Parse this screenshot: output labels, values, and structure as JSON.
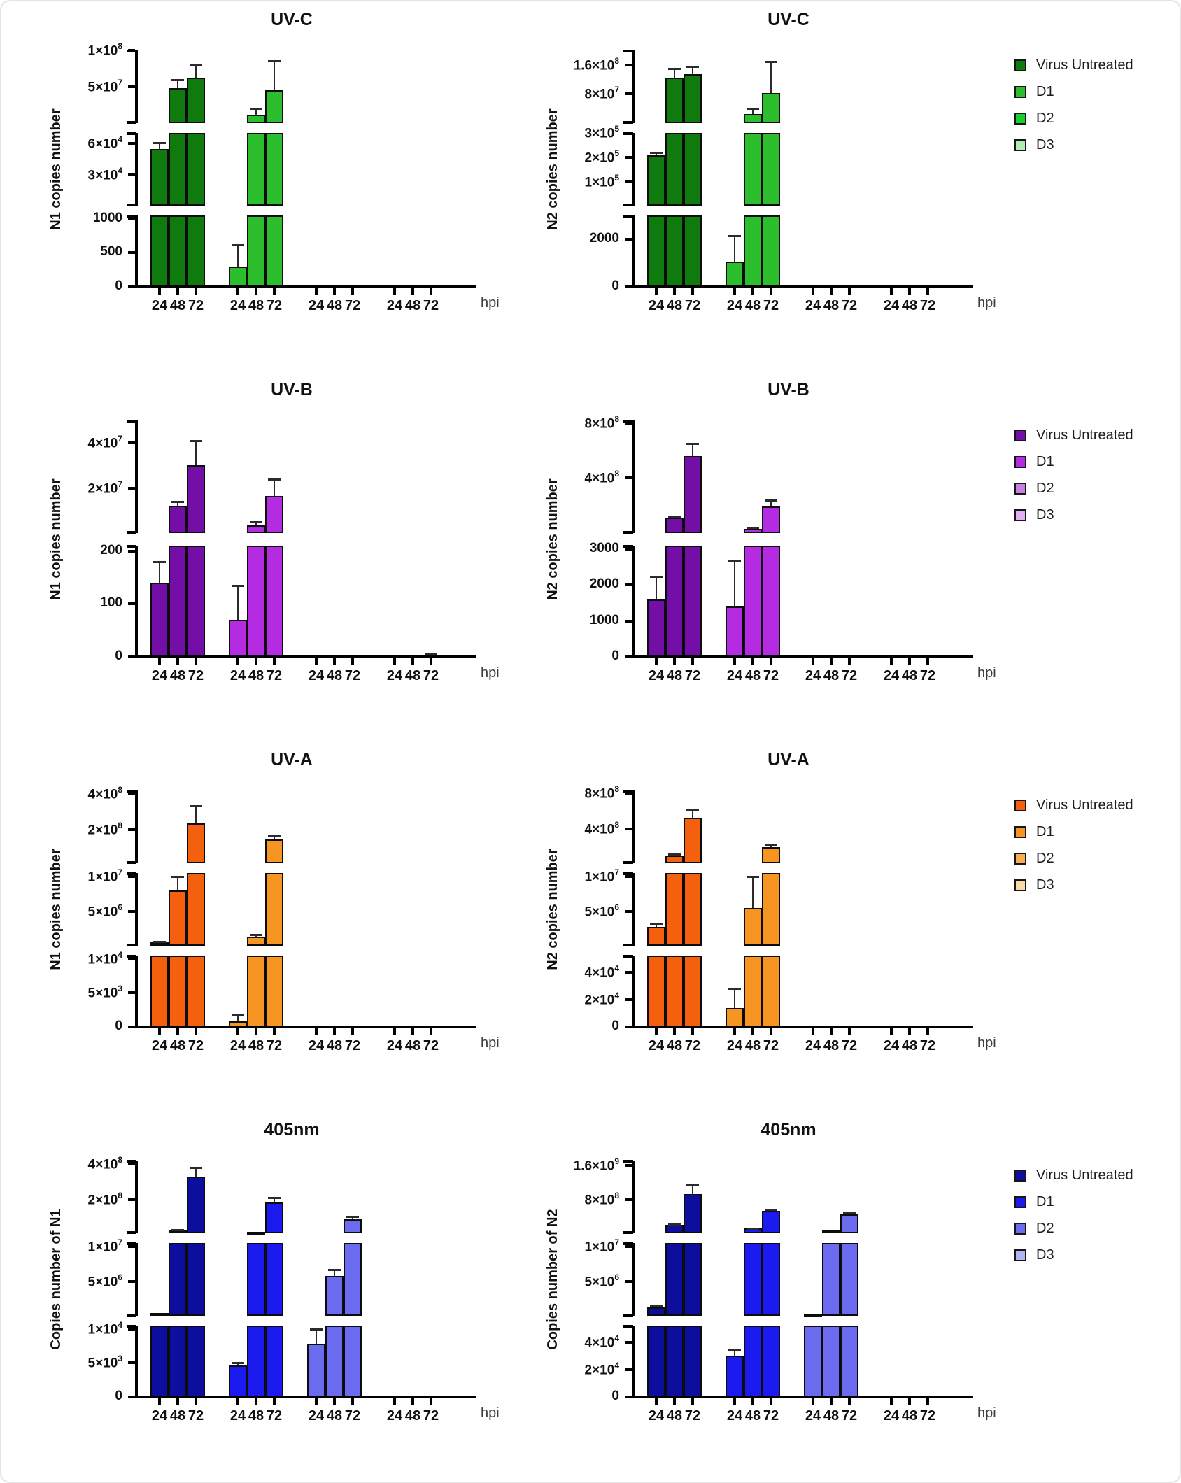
{
  "hpi_label": "hpi",
  "categories": [
    "24",
    "48",
    "72"
  ],
  "rows": [
    {
      "title": "UV-C",
      "legend": [
        {
          "label": "Virus Untreated",
          "color": "#0f7b0f"
        },
        {
          "label": "D1",
          "color": "#2dbe2d"
        },
        {
          "label": "D2",
          "color": "#18cf2d"
        },
        {
          "label": "D3",
          "color": "#b2ecb4"
        }
      ]
    },
    {
      "title": "UV-B",
      "legend": [
        {
          "label": "Virus Untreated",
          "color": "#730fa6"
        },
        {
          "label": "D1",
          "color": "#b52be2"
        },
        {
          "label": "D2",
          "color": "#c77fe0"
        },
        {
          "label": "D3",
          "color": "#e3aef2"
        }
      ]
    },
    {
      "title": "UV-A",
      "legend": [
        {
          "label": "Virus Untreated",
          "color": "#f4600e"
        },
        {
          "label": "D1",
          "color": "#f79522"
        },
        {
          "label": "D2",
          "color": "#f9ad52"
        },
        {
          "label": "D3",
          "color": "#fad9a8"
        }
      ]
    },
    {
      "title": "405nm",
      "legend": [
        {
          "label": "Virus Untreated",
          "color": "#0e0e9e"
        },
        {
          "label": "D1",
          "color": "#1b1bf0"
        },
        {
          "label": "D2",
          "color": "#6b6bef"
        },
        {
          "label": "D3",
          "color": "#b2b5f2"
        }
      ]
    }
  ],
  "chart_data": [
    {
      "type": "bar",
      "slug": "uvc-n1",
      "row": 0,
      "col": 0,
      "title": "UV-C",
      "ylabel": "N1 copies number",
      "xlabel": "hpi",
      "categories": [
        "24",
        "48",
        "72"
      ],
      "segments": [
        {
          "min": 70000,
          "max": 100000000,
          "ticks": [
            {
              "v": 100000000,
              "label": "1×10^8"
            },
            {
              "v": 50000000,
              "label": "5×10^7"
            }
          ]
        },
        {
          "min": 1000,
          "max": 70000,
          "ticks": [
            {
              "v": 60000,
              "label": "6×10^4"
            },
            {
              "v": 30000,
              "label": "3×10^4"
            }
          ]
        },
        {
          "min": 0,
          "max": 1050,
          "ticks": [
            {
              "v": 1000,
              "label": "1000"
            },
            {
              "v": 500,
              "label": "500"
            },
            {
              "v": 0,
              "label": "0"
            }
          ]
        }
      ],
      "series": [
        {
          "name": "Virus Untreated",
          "values": [
            55000,
            48000000,
            63000000
          ],
          "errors": [
            61000,
            60000000,
            80000000
          ]
        },
        {
          "name": "D1",
          "values": [
            300,
            12000000,
            45000000
          ],
          "errors": [
            620,
            20000000,
            86000000
          ]
        },
        {
          "name": "D2",
          "values": [
            0,
            0,
            0
          ],
          "errors": [
            null,
            null,
            null
          ]
        },
        {
          "name": "D3",
          "values": [
            0,
            0,
            0
          ],
          "errors": [
            null,
            null,
            null
          ]
        }
      ]
    },
    {
      "type": "bar",
      "slug": "uvc-n2",
      "row": 0,
      "col": 1,
      "title": "UV-C",
      "ylabel": "N2 copies number",
      "xlabel": "hpi",
      "categories": [
        "24",
        "48",
        "72"
      ],
      "segments": [
        {
          "min": 300000,
          "max": 200000000,
          "ticks": [
            {
              "v": 160000000,
              "label": "1.6×10^8"
            },
            {
              "v": 80000000,
              "label": "8×10^7"
            }
          ]
        },
        {
          "min": 3000,
          "max": 300000,
          "ticks": [
            {
              "v": 300000,
              "label": "3×10^5"
            },
            {
              "v": 200000,
              "label": "2×10^5"
            },
            {
              "v": 100000,
              "label": "1×10^5"
            }
          ]
        },
        {
          "min": 0,
          "max": 3000,
          "ticks": [
            {
              "v": 2000,
              "label": "2000"
            },
            {
              "v": 0,
              "label": "0"
            }
          ]
        }
      ],
      "series": [
        {
          "name": "Virus Untreated",
          "values": [
            210000,
            126000000,
            134000000
          ],
          "errors": [
            220000,
            150000000,
            156000000
          ]
        },
        {
          "name": "D1",
          "values": [
            1050,
            25000000,
            82000000
          ],
          "errors": [
            2150,
            40000000,
            170000000
          ]
        },
        {
          "name": "D2",
          "values": [
            0,
            0,
            0
          ],
          "errors": [
            null,
            null,
            null
          ]
        },
        {
          "name": "D3",
          "values": [
            0,
            0,
            0
          ],
          "errors": [
            null,
            null,
            null
          ]
        }
      ]
    },
    {
      "type": "bar",
      "slug": "uvb-n1",
      "row": 1,
      "col": 0,
      "title": "UV-B",
      "ylabel": "N1 copies number",
      "xlabel": "hpi",
      "categories": [
        "24",
        "48",
        "72"
      ],
      "segments": [
        {
          "min": 200,
          "max": 50000000,
          "ticks": [
            {
              "v": 40000000,
              "label": "4×10^7"
            },
            {
              "v": 20000000,
              "label": "2×10^7"
            }
          ]
        },
        {
          "min": 0,
          "max": 210,
          "ticks": [
            {
              "v": 200,
              "label": "200"
            },
            {
              "v": 100,
              "label": "100"
            },
            {
              "v": 0,
              "label": "0"
            }
          ]
        }
      ],
      "series": [
        {
          "name": "Virus Untreated",
          "values": [
            140,
            12000000,
            30000000
          ],
          "errors": [
            180,
            14000000,
            41000000
          ]
        },
        {
          "name": "D1",
          "values": [
            70,
            3500000,
            16500000
          ],
          "errors": [
            135,
            5000000,
            24000000
          ]
        },
        {
          "name": "D2",
          "values": [
            0,
            0,
            2
          ],
          "errors": [
            null,
            null,
            3
          ]
        },
        {
          "name": "D3",
          "values": [
            0,
            0,
            4
          ],
          "errors": [
            null,
            null,
            5
          ]
        }
      ]
    },
    {
      "type": "bar",
      "slug": "uvb-n2",
      "row": 1,
      "col": 1,
      "title": "UV-B",
      "ylabel": "N2 copies number",
      "xlabel": "hpi",
      "categories": [
        "24",
        "48",
        "72"
      ],
      "segments": [
        {
          "min": 3000,
          "max": 820000000,
          "ticks": [
            {
              "v": 800000000,
              "label": "8×10^8"
            },
            {
              "v": 400000000,
              "label": "4×10^8"
            }
          ]
        },
        {
          "min": 0,
          "max": 3100,
          "ticks": [
            {
              "v": 3000,
              "label": "3000"
            },
            {
              "v": 2000,
              "label": "2000"
            },
            {
              "v": 1000,
              "label": "1000"
            },
            {
              "v": 0,
              "label": "0"
            }
          ]
        }
      ],
      "series": [
        {
          "name": "Virus Untreated",
          "values": [
            1600,
            110000000,
            560000000
          ],
          "errors": [
            2250,
            118000000,
            650000000
          ]
        },
        {
          "name": "D1",
          "values": [
            1400,
            33000000,
            195000000
          ],
          "errors": [
            2700,
            42000000,
            240000000
          ]
        },
        {
          "name": "D2",
          "values": [
            0,
            0,
            0
          ],
          "errors": [
            null,
            null,
            null
          ]
        },
        {
          "name": "D3",
          "values": [
            0,
            0,
            0
          ],
          "errors": [
            null,
            null,
            null
          ]
        }
      ]
    },
    {
      "type": "bar",
      "slug": "uva-n1",
      "row": 2,
      "col": 0,
      "title": "UV-A",
      "ylabel": "N1 copies number",
      "xlabel": "hpi",
      "categories": [
        "24",
        "48",
        "72"
      ],
      "segments": [
        {
          "min": 10000000,
          "max": 420000000,
          "ticks": [
            {
              "v": 400000000,
              "label": "4×10^8"
            },
            {
              "v": 200000000,
              "label": "2×10^8"
            }
          ]
        },
        {
          "min": 10000,
          "max": 10500000,
          "ticks": [
            {
              "v": 10000000,
              "label": "1×10^7"
            },
            {
              "v": 5000000,
              "label": "5×10^6"
            }
          ]
        },
        {
          "min": 0,
          "max": 10500,
          "ticks": [
            {
              "v": 10000,
              "label": "1×10^4"
            },
            {
              "v": 5000,
              "label": "5×10^3"
            },
            {
              "v": 0,
              "label": "0"
            }
          ]
        }
      ],
      "series": [
        {
          "name": "Virus Untreated",
          "values": [
            500000,
            8000000,
            235000000
          ],
          "errors": [
            650000,
            10000000,
            335000000
          ]
        },
        {
          "name": "D1",
          "values": [
            800,
            1300000,
            145000000
          ],
          "errors": [
            1800,
            1650000,
            165000000
          ]
        },
        {
          "name": "D2",
          "values": [
            0,
            0,
            0
          ],
          "errors": [
            null,
            null,
            null
          ]
        },
        {
          "name": "D3",
          "values": [
            0,
            0,
            0
          ],
          "errors": [
            null,
            null,
            null
          ]
        }
      ]
    },
    {
      "type": "bar",
      "slug": "uva-n2",
      "row": 2,
      "col": 1,
      "title": "UV-A",
      "ylabel": "N2 copies number",
      "xlabel": "hpi",
      "categories": [
        "24",
        "48",
        "72"
      ],
      "segments": [
        {
          "min": 10000000,
          "max": 830000000,
          "ticks": [
            {
              "v": 800000000,
              "label": "8×10^8"
            },
            {
              "v": 400000000,
              "label": "4×10^8"
            }
          ]
        },
        {
          "min": 50000,
          "max": 10500000,
          "ticks": [
            {
              "v": 10000000,
              "label": "1×10^7"
            },
            {
              "v": 5000000,
              "label": "5×10^6"
            }
          ]
        },
        {
          "min": 0,
          "max": 52000,
          "ticks": [
            {
              "v": 40000,
              "label": "4×10^4"
            },
            {
              "v": 20000,
              "label": "2×10^4"
            },
            {
              "v": 0,
              "label": "0"
            }
          ]
        }
      ],
      "series": [
        {
          "name": "Virus Untreated",
          "values": [
            2800000,
            100000000,
            520000000
          ],
          "errors": [
            3300000,
            110000000,
            620000000
          ]
        },
        {
          "name": "D1",
          "values": [
            14000,
            5500000,
            190000000
          ],
          "errors": [
            28000,
            10000000,
            220000000
          ]
        },
        {
          "name": "D2",
          "values": [
            0,
            0,
            0
          ],
          "errors": [
            null,
            null,
            null
          ]
        },
        {
          "name": "D3",
          "values": [
            0,
            0,
            0
          ],
          "errors": [
            null,
            null,
            null
          ]
        }
      ]
    },
    {
      "type": "bar",
      "slug": "405nm-n1",
      "row": 3,
      "col": 0,
      "title": "405nm",
      "ylabel": "Copies number of N1",
      "xlabel": "hpi",
      "categories": [
        "24",
        "48",
        "72"
      ],
      "segments": [
        {
          "min": 10000000,
          "max": 420000000,
          "ticks": [
            {
              "v": 400000000,
              "label": "4×10^8"
            },
            {
              "v": 200000000,
              "label": "2×10^8"
            }
          ]
        },
        {
          "min": 10000,
          "max": 10500000,
          "ticks": [
            {
              "v": 10000000,
              "label": "1×10^7"
            },
            {
              "v": 5000000,
              "label": "5×10^6"
            }
          ]
        },
        {
          "min": 0,
          "max": 10500,
          "ticks": [
            {
              "v": 10000,
              "label": "1×10^4"
            },
            {
              "v": 5000,
              "label": "5×10^3"
            },
            {
              "v": 0,
              "label": "0"
            }
          ]
        }
      ],
      "series": [
        {
          "name": "Virus Untreated",
          "values": [
            400000,
            26000000,
            330000000
          ],
          "errors": [
            null,
            30000000,
            380000000
          ]
        },
        {
          "name": "D1",
          "values": [
            4600,
            18000000,
            185000000
          ],
          "errors": [
            5000,
            null,
            210000000
          ]
        },
        {
          "name": "D2",
          "values": [
            7800,
            5800000,
            90000000
          ],
          "errors": [
            10000,
            6700000,
            105000000
          ]
        },
        {
          "name": "D3",
          "values": [
            0,
            0,
            0
          ],
          "errors": [
            null,
            null,
            null
          ]
        }
      ]
    },
    {
      "type": "bar",
      "slug": "405nm-n2",
      "row": 3,
      "col": 1,
      "title": "405nm",
      "ylabel": "Copies number of N2",
      "xlabel": "hpi",
      "categories": [
        "24",
        "48",
        "72"
      ],
      "segments": [
        {
          "min": 10000000,
          "max": 1720000000,
          "ticks": [
            {
              "v": 1600000000,
              "label": "1.6×10^9"
            },
            {
              "v": 800000000,
              "label": "8×10^8"
            }
          ]
        },
        {
          "min": 50000,
          "max": 10500000,
          "ticks": [
            {
              "v": 10000000,
              "label": "1×10^7"
            },
            {
              "v": 5000000,
              "label": "5×10^6"
            }
          ]
        },
        {
          "min": 0,
          "max": 52000,
          "ticks": [
            {
              "v": 40000,
              "label": "4×10^4"
            },
            {
              "v": 20000,
              "label": "2×10^4"
            },
            {
              "v": 0,
              "label": "0"
            }
          ]
        }
      ],
      "series": [
        {
          "name": "Virus Untreated",
          "values": [
            1300000,
            210000000,
            930000000
          ],
          "errors": [
            1450000,
            230000000,
            1150000000
          ]
        },
        {
          "name": "D1",
          "values": [
            30000,
            120000000,
            530000000
          ],
          "errors": [
            34000,
            130000000,
            570000000
          ]
        },
        {
          "name": "D2",
          "values": [
            250000,
            80000000,
            460000000
          ],
          "errors": [
            null,
            null,
            490000000
          ]
        },
        {
          "name": "D3",
          "values": [
            0,
            0,
            0
          ],
          "errors": [
            null,
            null,
            null
          ]
        }
      ]
    }
  ]
}
